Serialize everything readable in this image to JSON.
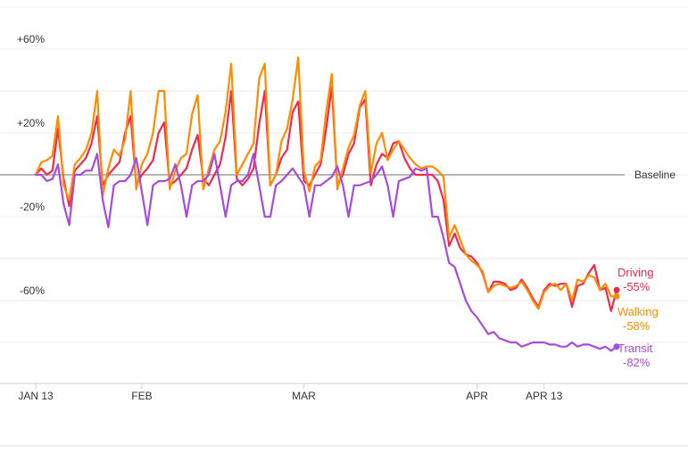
{
  "chart_data": {
    "type": "line",
    "title": "",
    "xlabel": "",
    "ylabel": "",
    "ylim": [
      -95,
      75
    ],
    "grid": true,
    "x_start": "2020-01-13",
    "x_ticks": [
      {
        "label": "JAN 13",
        "date": "2020-01-13"
      },
      {
        "label": "FEB",
        "date": "2020-02-01"
      },
      {
        "label": "MAR",
        "date": "2020-03-01"
      },
      {
        "label": "APR",
        "date": "2020-04-01"
      },
      {
        "label": "APR 13",
        "date": "2020-04-13"
      }
    ],
    "y_ticks": [
      {
        "label": "+60%",
        "value": 60
      },
      {
        "label": "+20%",
        "value": 20
      },
      {
        "label": "-20%",
        "value": -20
      },
      {
        "label": "-60%",
        "value": -60
      }
    ],
    "baseline": {
      "label": "Baseline",
      "value": 0
    },
    "series": [
      {
        "name": "Driving",
        "end_label": "-55%",
        "color": "#ee2a4e",
        "values": [
          0,
          3,
          0,
          2,
          22,
          -2,
          -15,
          2,
          5,
          8,
          15,
          28,
          -5,
          0,
          3,
          6,
          20,
          28,
          -5,
          0,
          3,
          7,
          20,
          25,
          -5,
          -3,
          0,
          3,
          12,
          19,
          -2,
          -5,
          0,
          5,
          18,
          40,
          -2,
          -5,
          -2,
          3,
          24,
          40,
          -5,
          0,
          8,
          12,
          30,
          35,
          -3,
          -5,
          0,
          5,
          22,
          42,
          -5,
          0,
          10,
          15,
          32,
          36,
          -5,
          5,
          10,
          8,
          15,
          16,
          8,
          3,
          0,
          0,
          0,
          0,
          -3,
          -12,
          -34,
          -28,
          -35,
          -38,
          -39,
          -42,
          -47,
          -56,
          -51,
          -51,
          -52,
          -55,
          -54,
          -50,
          -54,
          -59,
          -63,
          -55,
          -52,
          -53,
          -52,
          -52,
          -63,
          -53,
          -52,
          -47,
          -43,
          -55,
          -54,
          -65,
          -55
        ]
      },
      {
        "name": "Walking",
        "end_label": "-58%",
        "color": "#ff8c00",
        "values": [
          0,
          6,
          7,
          9,
          28,
          -5,
          -12,
          5,
          8,
          12,
          20,
          40,
          -10,
          3,
          12,
          9,
          17,
          40,
          -7,
          5,
          10,
          20,
          40,
          40,
          -7,
          2,
          8,
          10,
          29,
          38,
          -7,
          3,
          12,
          16,
          30,
          53,
          0,
          5,
          10,
          15,
          46,
          53,
          -5,
          0,
          16,
          22,
          36,
          56,
          2,
          -8,
          4,
          7,
          30,
          48,
          -7,
          3,
          13,
          19,
          33,
          40,
          1,
          15,
          20,
          7,
          12,
          16,
          12,
          8,
          5,
          3,
          4,
          4,
          2,
          -1,
          -30,
          -24,
          -31,
          -38,
          -41,
          -43,
          -46,
          -56,
          -53,
          -52,
          -53,
          -54,
          -53,
          -51,
          -55,
          -60,
          -64,
          -56,
          -53,
          -52,
          -55,
          -52,
          -60,
          -50,
          -51,
          -48,
          -49,
          -55,
          -52,
          -58,
          -58
        ]
      },
      {
        "name": "Transit",
        "end_label": "-82%",
        "color": "#a64bdb",
        "values": [
          0,
          0,
          -3,
          -2,
          5,
          -14,
          -24,
          0,
          0,
          2,
          2,
          10,
          -12,
          -25,
          -5,
          -3,
          -3,
          0,
          8,
          -8,
          -24,
          -5,
          -3,
          -3,
          -2,
          5,
          -5,
          -20,
          -5,
          -3,
          -3,
          0,
          10,
          -5,
          -20,
          -5,
          -3,
          -3,
          0,
          10,
          -5,
          -20,
          -20,
          -5,
          -3,
          0,
          3,
          -1,
          -5,
          -20,
          -5,
          -5,
          -3,
          -1,
          4,
          -5,
          -20,
          -5,
          -5,
          -4,
          -3,
          0,
          4,
          -5,
          -20,
          -3,
          -2,
          -1,
          3,
          2,
          3,
          -20,
          -20,
          -30,
          -42,
          -44,
          -52,
          -60,
          -65,
          -68,
          -72,
          -76,
          -75,
          -78,
          -79,
          -80,
          -80,
          -82,
          -81,
          -80,
          -80,
          -80,
          -81,
          -81,
          -82,
          -82,
          -80,
          -82,
          -81,
          -81,
          -82,
          -83,
          -82,
          -84,
          -82
        ]
      }
    ]
  }
}
